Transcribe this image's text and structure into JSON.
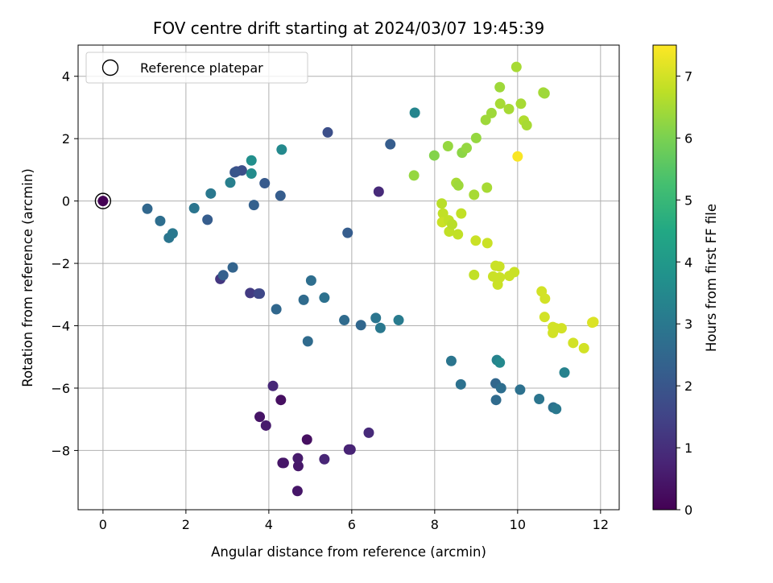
{
  "chart_data": {
    "type": "scatter",
    "title": "FOV centre drift starting at 2024/03/07 19:45:39",
    "xlabel": "Angular distance from reference (arcmin)",
    "ylabel": "Rotation from reference (arcmin)",
    "xlim": [
      -0.6,
      12.45
    ],
    "ylim": [
      -9.9,
      5.0
    ],
    "xticks": [
      0,
      2,
      4,
      6,
      8,
      10,
      12
    ],
    "yticks": [
      -8,
      -6,
      -4,
      -2,
      0,
      2,
      4
    ],
    "grid": true,
    "legend": {
      "position": "top-left",
      "entries": [
        "Reference platepar"
      ]
    },
    "colorbar": {
      "label": "Hours from first FF file",
      "range": [
        0,
        7.5
      ],
      "ticks": [
        0,
        1,
        2,
        3,
        4,
        5,
        6,
        7
      ],
      "colormap": "viridis"
    },
    "reference": {
      "x": 0,
      "y": 0
    },
    "points": [
      {
        "x": 0.0,
        "y": 0.0,
        "hours": 0.0
      },
      {
        "x": 4.69,
        "y": -9.3,
        "hours": 0.45
      },
      {
        "x": 4.33,
        "y": -8.4,
        "hours": 0.4
      },
      {
        "x": 4.36,
        "y": -8.4,
        "hours": 0.45
      },
      {
        "x": 4.71,
        "y": -8.5,
        "hours": 0.5
      },
      {
        "x": 4.7,
        "y": -8.25,
        "hours": 0.55
      },
      {
        "x": 4.92,
        "y": -7.65,
        "hours": 0.3
      },
      {
        "x": 5.34,
        "y": -8.28,
        "hours": 0.8
      },
      {
        "x": 5.93,
        "y": -7.97,
        "hours": 0.7
      },
      {
        "x": 5.97,
        "y": -7.97,
        "hours": 0.75
      },
      {
        "x": 6.41,
        "y": -7.43,
        "hours": 0.9
      },
      {
        "x": 3.78,
        "y": -6.92,
        "hours": 0.4
      },
      {
        "x": 3.93,
        "y": -7.2,
        "hours": 0.55
      },
      {
        "x": 4.29,
        "y": -6.38,
        "hours": 0.3
      },
      {
        "x": 4.1,
        "y": -5.93,
        "hours": 0.85
      },
      {
        "x": 6.65,
        "y": 0.3,
        "hours": 0.9
      },
      {
        "x": 2.83,
        "y": -2.5,
        "hours": 1.2
      },
      {
        "x": 3.55,
        "y": -2.95,
        "hours": 1.3
      },
      {
        "x": 3.75,
        "y": -2.97,
        "hours": 1.5
      },
      {
        "x": 3.78,
        "y": -2.97,
        "hours": 1.6
      },
      {
        "x": 5.42,
        "y": 2.2,
        "hours": 1.8
      },
      {
        "x": 3.22,
        "y": 0.95,
        "hours": 1.7
      },
      {
        "x": 3.35,
        "y": 0.98,
        "hours": 1.8
      },
      {
        "x": 3.18,
        "y": 0.92,
        "hours": 2.0
      },
      {
        "x": 3.9,
        "y": 0.57,
        "hours": 2.1
      },
      {
        "x": 4.28,
        "y": 0.17,
        "hours": 2.2
      },
      {
        "x": 3.64,
        "y": -0.13,
        "hours": 2.3
      },
      {
        "x": 2.52,
        "y": -0.6,
        "hours": 2.2
      },
      {
        "x": 5.9,
        "y": -1.02,
        "hours": 2.2
      },
      {
        "x": 6.93,
        "y": 1.82,
        "hours": 2.2
      },
      {
        "x": 2.9,
        "y": -2.38,
        "hours": 2.3
      },
      {
        "x": 3.13,
        "y": -2.13,
        "hours": 2.4
      },
      {
        "x": 4.18,
        "y": -3.47,
        "hours": 2.5
      },
      {
        "x": 4.84,
        "y": -3.17,
        "hours": 2.6
      },
      {
        "x": 5.02,
        "y": -2.55,
        "hours": 2.7
      },
      {
        "x": 5.34,
        "y": -3.1,
        "hours": 2.8
      },
      {
        "x": 4.94,
        "y": -4.5,
        "hours": 2.6
      },
      {
        "x": 5.82,
        "y": -3.82,
        "hours": 2.6
      },
      {
        "x": 6.22,
        "y": -3.98,
        "hours": 2.5
      },
      {
        "x": 6.58,
        "y": -3.75,
        "hours": 2.9
      },
      {
        "x": 6.69,
        "y": -4.07,
        "hours": 3.0
      },
      {
        "x": 7.13,
        "y": -3.82,
        "hours": 3.1
      },
      {
        "x": 1.07,
        "y": -0.25,
        "hours": 2.5
      },
      {
        "x": 1.38,
        "y": -0.64,
        "hours": 2.7
      },
      {
        "x": 1.59,
        "y": -1.18,
        "hours": 2.9
      },
      {
        "x": 1.68,
        "y": -1.04,
        "hours": 3.0
      },
      {
        "x": 2.2,
        "y": -0.23,
        "hours": 2.9
      },
      {
        "x": 2.6,
        "y": 0.24,
        "hours": 3.0
      },
      {
        "x": 3.07,
        "y": 0.59,
        "hours": 3.2
      },
      {
        "x": 3.58,
        "y": 0.88,
        "hours": 3.6
      },
      {
        "x": 3.58,
        "y": 1.3,
        "hours": 3.7
      },
      {
        "x": 4.31,
        "y": 1.65,
        "hours": 3.5
      },
      {
        "x": 7.52,
        "y": 2.83,
        "hours": 3.4
      },
      {
        "x": 8.4,
        "y": -5.13,
        "hours": 2.9
      },
      {
        "x": 8.63,
        "y": -5.88,
        "hours": 2.8
      },
      {
        "x": 9.47,
        "y": -5.85,
        "hours": 2.5
      },
      {
        "x": 9.48,
        "y": -6.38,
        "hours": 2.6
      },
      {
        "x": 9.6,
        "y": -6.0,
        "hours": 2.7
      },
      {
        "x": 9.5,
        "y": -5.1,
        "hours": 3.3
      },
      {
        "x": 9.57,
        "y": -5.18,
        "hours": 3.5
      },
      {
        "x": 10.06,
        "y": -6.05,
        "hours": 2.8
      },
      {
        "x": 10.52,
        "y": -6.35,
        "hours": 2.9
      },
      {
        "x": 10.86,
        "y": -6.62,
        "hours": 2.8
      },
      {
        "x": 10.93,
        "y": -6.67,
        "hours": 3.0
      },
      {
        "x": 11.13,
        "y": -5.5,
        "hours": 3.3
      },
      {
        "x": 7.5,
        "y": 0.82,
        "hours": 6.3
      },
      {
        "x": 7.99,
        "y": 1.46,
        "hours": 6.1
      },
      {
        "x": 8.32,
        "y": 1.76,
        "hours": 6.3
      },
      {
        "x": 8.52,
        "y": 0.58,
        "hours": 6.5
      },
      {
        "x": 8.57,
        "y": 0.5,
        "hours": 6.4
      },
      {
        "x": 8.66,
        "y": 1.55,
        "hours": 6.2
      },
      {
        "x": 8.77,
        "y": 1.7,
        "hours": 6.3
      },
      {
        "x": 8.95,
        "y": 0.2,
        "hours": 6.5
      },
      {
        "x": 9.0,
        "y": 2.02,
        "hours": 6.3
      },
      {
        "x": 9.23,
        "y": 2.6,
        "hours": 6.4
      },
      {
        "x": 9.26,
        "y": 0.43,
        "hours": 6.5
      },
      {
        "x": 9.37,
        "y": 2.82,
        "hours": 6.4
      },
      {
        "x": 9.57,
        "y": 3.65,
        "hours": 6.4
      },
      {
        "x": 9.58,
        "y": 3.12,
        "hours": 6.5
      },
      {
        "x": 9.79,
        "y": 2.95,
        "hours": 6.5
      },
      {
        "x": 9.97,
        "y": 4.3,
        "hours": 6.5
      },
      {
        "x": 10.08,
        "y": 3.12,
        "hours": 6.5
      },
      {
        "x": 10.15,
        "y": 2.58,
        "hours": 6.6
      },
      {
        "x": 10.22,
        "y": 2.43,
        "hours": 6.5
      },
      {
        "x": 10.62,
        "y": 3.48,
        "hours": 6.5
      },
      {
        "x": 10.65,
        "y": 3.45,
        "hours": 6.4
      },
      {
        "x": 10.0,
        "y": 1.43,
        "hours": 7.45
      },
      {
        "x": 8.17,
        "y": -0.08,
        "hours": 6.7
      },
      {
        "x": 8.2,
        "y": -0.4,
        "hours": 6.8
      },
      {
        "x": 8.18,
        "y": -0.68,
        "hours": 6.9
      },
      {
        "x": 8.34,
        "y": -0.62,
        "hours": 6.8
      },
      {
        "x": 8.35,
        "y": -0.98,
        "hours": 6.8
      },
      {
        "x": 8.42,
        "y": -0.75,
        "hours": 6.7
      },
      {
        "x": 8.56,
        "y": -1.07,
        "hours": 6.8
      },
      {
        "x": 8.64,
        "y": -0.4,
        "hours": 6.8
      },
      {
        "x": 8.95,
        "y": -2.37,
        "hours": 6.8
      },
      {
        "x": 8.99,
        "y": -1.27,
        "hours": 6.9
      },
      {
        "x": 9.27,
        "y": -1.35,
        "hours": 6.9
      },
      {
        "x": 9.41,
        "y": -2.42,
        "hours": 6.9
      },
      {
        "x": 9.47,
        "y": -2.08,
        "hours": 6.9
      },
      {
        "x": 9.52,
        "y": -2.68,
        "hours": 6.9
      },
      {
        "x": 9.56,
        "y": -2.1,
        "hours": 6.9
      },
      {
        "x": 9.57,
        "y": -2.45,
        "hours": 6.9
      },
      {
        "x": 9.8,
        "y": -2.4,
        "hours": 6.9
      },
      {
        "x": 9.92,
        "y": -2.28,
        "hours": 6.9
      },
      {
        "x": 10.58,
        "y": -2.9,
        "hours": 7.0
      },
      {
        "x": 10.66,
        "y": -3.13,
        "hours": 7.0
      },
      {
        "x": 10.65,
        "y": -3.72,
        "hours": 7.0
      },
      {
        "x": 10.85,
        "y": -4.04,
        "hours": 7.0
      },
      {
        "x": 10.85,
        "y": -4.23,
        "hours": 7.0
      },
      {
        "x": 10.92,
        "y": -4.08,
        "hours": 7.0
      },
      {
        "x": 11.06,
        "y": -4.08,
        "hours": 7.0
      },
      {
        "x": 11.34,
        "y": -4.55,
        "hours": 7.0
      },
      {
        "x": 11.6,
        "y": -4.72,
        "hours": 7.0
      },
      {
        "x": 11.8,
        "y": -3.9,
        "hours": 7.1
      },
      {
        "x": 11.83,
        "y": -3.88,
        "hours": 7.1
      }
    ]
  }
}
